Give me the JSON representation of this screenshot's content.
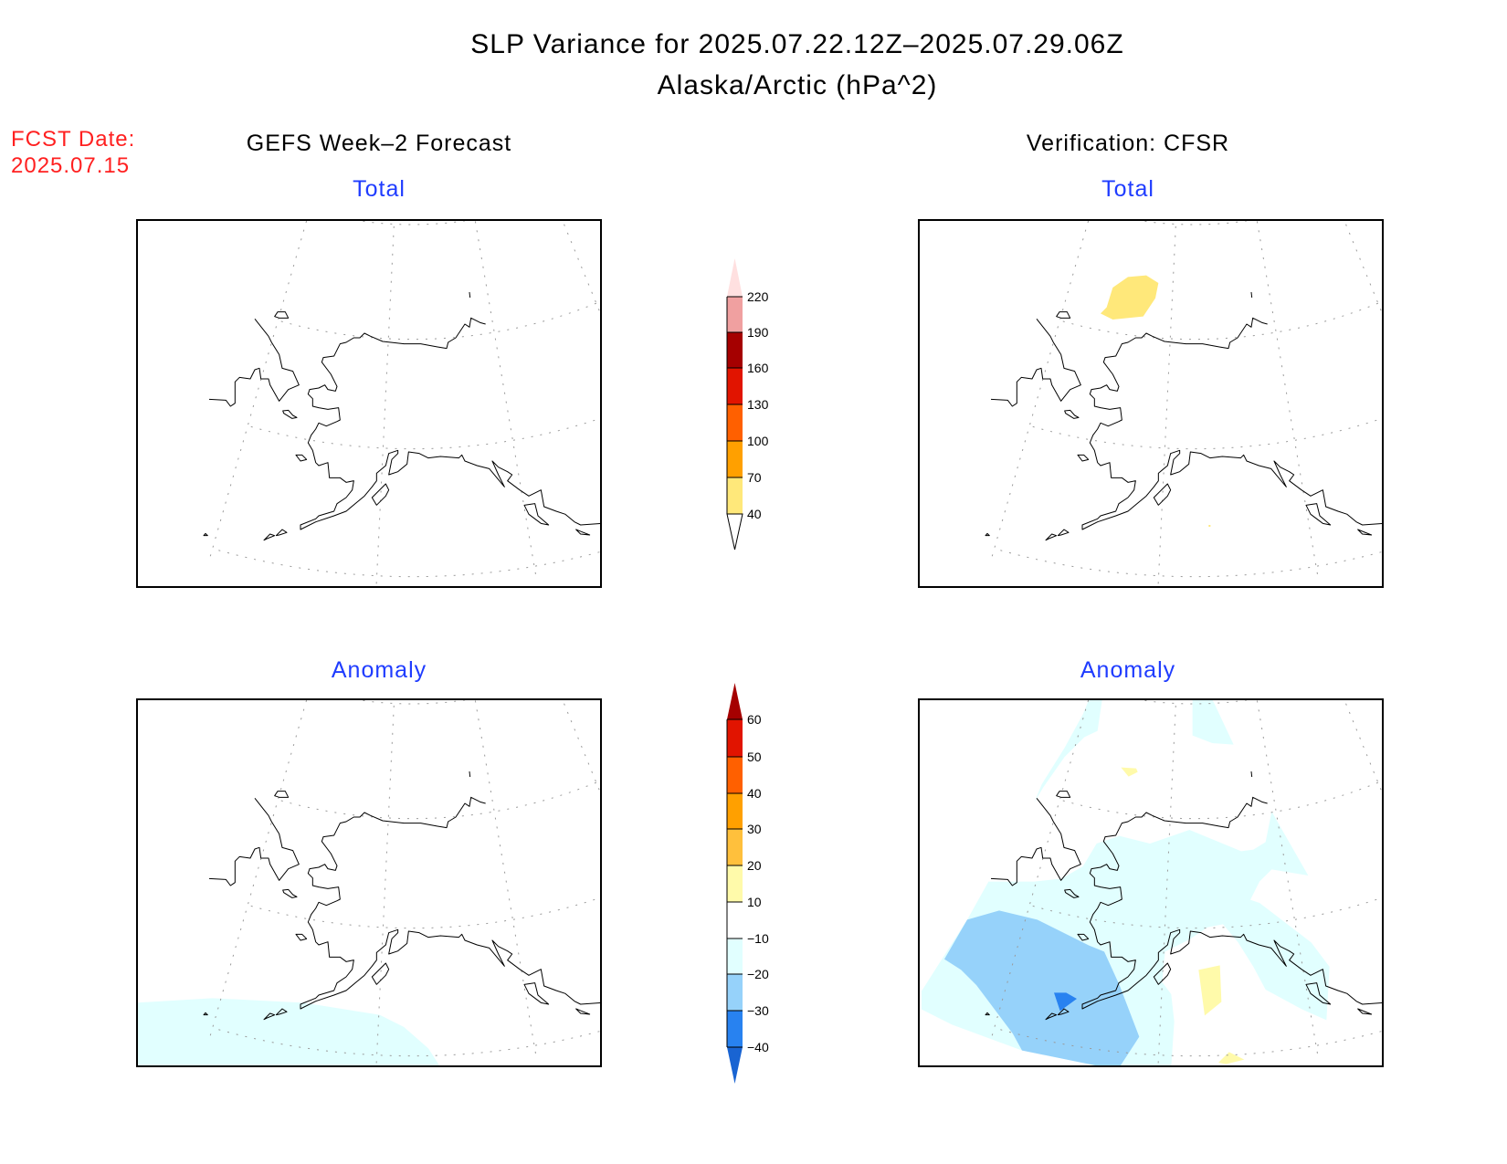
{
  "title": {
    "line1": "SLP Variance for 2025.07.22.12Z–2025.07.29.06Z",
    "line2": "Alaska/Arctic (hPa^2)"
  },
  "fcst_date": {
    "label": "FCST Date:",
    "value": "2025.07.15"
  },
  "columns": {
    "left": {
      "heading": "GEFS Week–2 Forecast",
      "top_label": "Total",
      "bottom_label": "Anomaly"
    },
    "right": {
      "heading": "Verification: CFSR",
      "top_label": "Total",
      "bottom_label": "Anomaly"
    }
  },
  "colorbars": {
    "total": {
      "levels": [
        "40",
        "70",
        "100",
        "130",
        "160",
        "190",
        "220"
      ],
      "colors": [
        "#ffffff",
        "#ffe87a",
        "#ffa000",
        "#ff6000",
        "#e11400",
        "#a50000",
        "#f0a0a0",
        "#ffe0e0"
      ]
    },
    "anomaly": {
      "levels": [
        "−40",
        "−30",
        "−20",
        "−10",
        "10",
        "20",
        "30",
        "40",
        "50",
        "60"
      ],
      "colors": [
        "#1964d2",
        "#2882f0",
        "#96d2fa",
        "#e1ffff",
        "#ffffff",
        "#fffaaa",
        "#ffc03c",
        "#ffa000",
        "#ff6000",
        "#e11400",
        "#a50000"
      ]
    }
  },
  "colors": {
    "title_blue": "#1f3cff",
    "fcst_red": "#ff2020"
  }
}
